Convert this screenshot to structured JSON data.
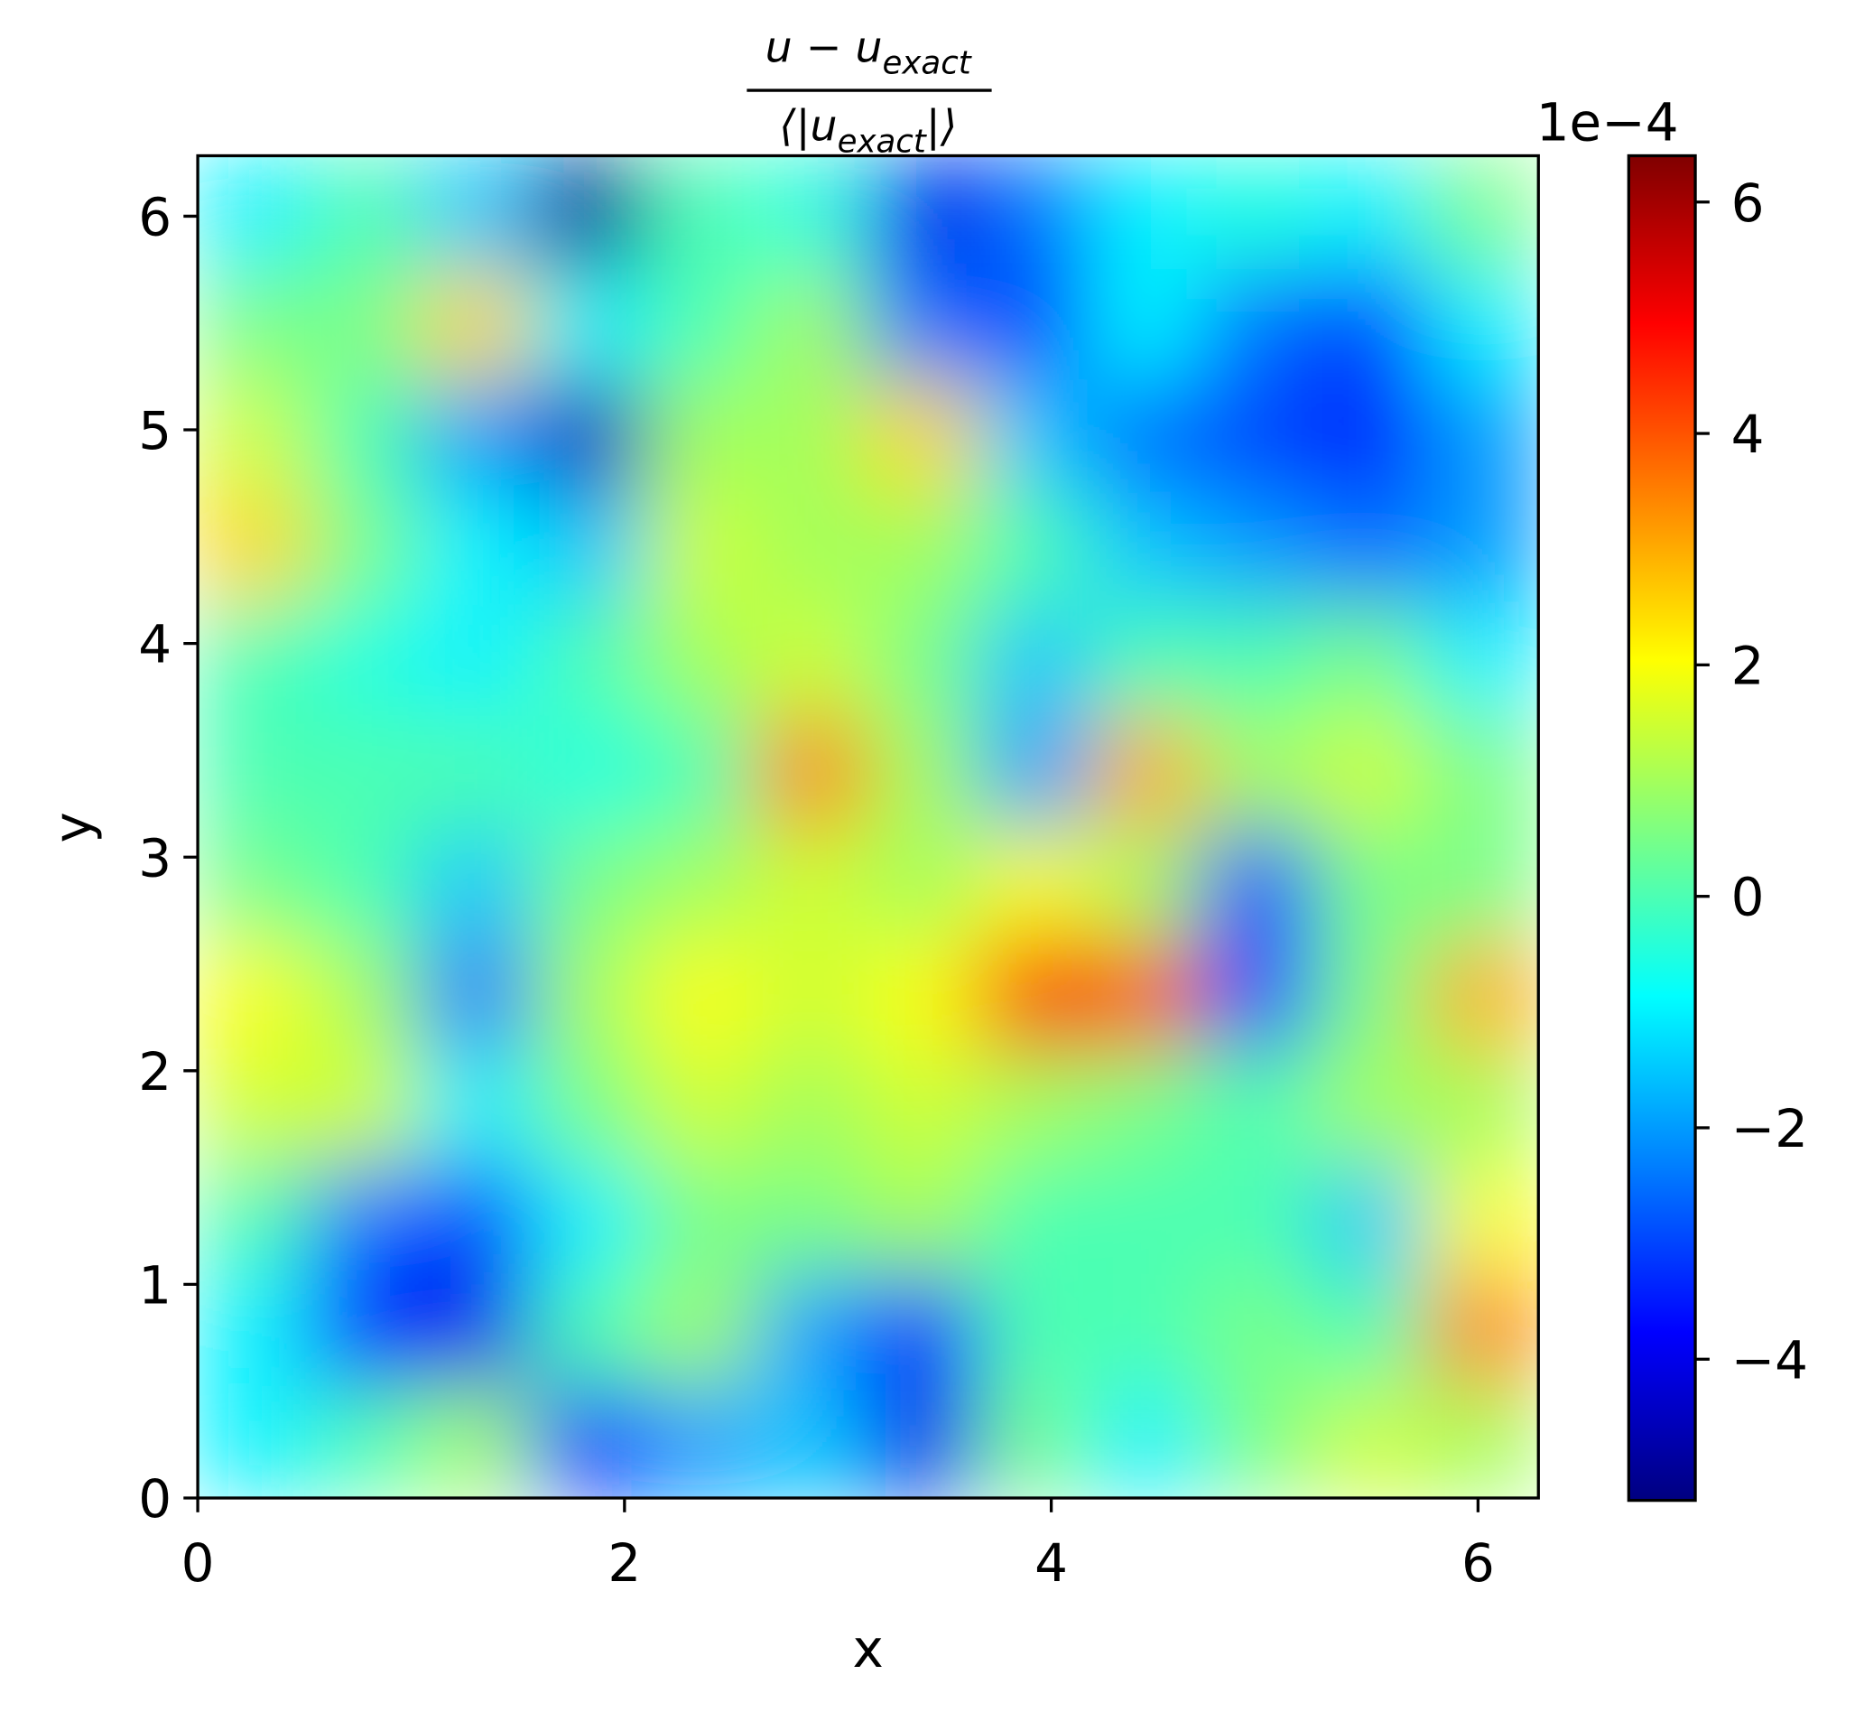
{
  "chart_data": {
    "type": "heatmap",
    "title": {
      "numerator": [
        "u − u",
        "exact"
      ],
      "denominator": [
        "⟨|u",
        "exact",
        "|⟩"
      ]
    },
    "xlabel": "x",
    "ylabel": "y",
    "x": [
      0.26,
      0.79,
      1.31,
      1.83,
      2.36,
      2.88,
      3.4,
      3.93,
      4.45,
      4.97,
      5.5,
      6.02
    ],
    "y": [
      0.26,
      0.79,
      1.31,
      1.83,
      2.36,
      2.88,
      3.4,
      3.93,
      4.45,
      4.97,
      5.5,
      6.02
    ],
    "values": [
      [
        -1,
        0,
        1,
        -3.5,
        -2,
        -1.5,
        -4,
        0.5,
        -1,
        0.5,
        1.5,
        1
      ],
      [
        -1,
        -3.5,
        -4,
        0,
        1,
        -2,
        -3.5,
        0,
        0,
        0.5,
        0,
        3.5
      ],
      [
        0,
        -2.5,
        -3,
        -1,
        0.5,
        0.5,
        1,
        0,
        0,
        0,
        -1.5,
        2
      ],
      [
        1.5,
        1.5,
        -1,
        0.5,
        1.5,
        1,
        1.5,
        1,
        0.5,
        0,
        1,
        1
      ],
      [
        2,
        1,
        -2.5,
        1,
        2,
        1.5,
        2,
        5,
        4,
        -3,
        0.5,
        3
      ],
      [
        0.5,
        0,
        -1.5,
        0.5,
        1,
        1.5,
        1,
        2,
        1,
        -3,
        0.5,
        0.5
      ],
      [
        0,
        0,
        0,
        -0.5,
        0,
        3.5,
        1,
        -2,
        3,
        1,
        1.5,
        0.5
      ],
      [
        0,
        -0.5,
        -1,
        0,
        1,
        1.5,
        0.5,
        -1.5,
        0,
        0,
        0.5,
        -1
      ],
      [
        2.5,
        0.5,
        -1,
        -1.5,
        1.5,
        1,
        1,
        0,
        -1.5,
        -2,
        -2.5,
        -2
      ],
      [
        1.5,
        0,
        -2,
        -4.5,
        1,
        1,
        2.5,
        -1.5,
        -2.5,
        -3,
        -3.5,
        -2
      ],
      [
        0.5,
        0.5,
        2.5,
        -1,
        0,
        1,
        -2.5,
        -3,
        -1,
        -2.5,
        -3,
        -1
      ],
      [
        -1,
        0,
        -1.5,
        -5,
        0,
        -0.5,
        -4,
        -2.5,
        -1,
        -0.5,
        -1,
        0.5
      ]
    ],
    "xlim": [
      0,
      6.283
    ],
    "ylim": [
      0,
      6.283
    ],
    "xticks": [
      0,
      2,
      4,
      6
    ],
    "yticks": [
      0,
      1,
      2,
      3,
      4,
      5,
      6
    ],
    "colormap": "jet",
    "clim": [
      -5.22,
      6.4
    ],
    "cticks": [
      {
        "value": -4,
        "label": "−4"
      },
      {
        "value": -2,
        "label": "−2"
      },
      0,
      2,
      4,
      6
    ],
    "colorbar_offset": "1e−4"
  }
}
